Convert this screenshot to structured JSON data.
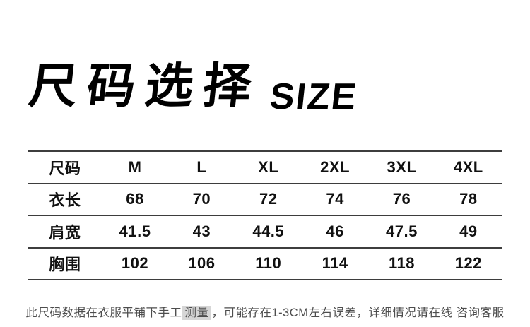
{
  "header": {
    "title_cn": "尺码选择",
    "title_en": "SIZE"
  },
  "chart_data": {
    "type": "table",
    "title": "尺码选择 SIZE",
    "columns": [
      "尺码",
      "M",
      "L",
      "XL",
      "2XL",
      "3XL",
      "4XL"
    ],
    "rows": [
      [
        "衣长",
        "68",
        "70",
        "72",
        "74",
        "76",
        "78"
      ],
      [
        "肩宽",
        "41.5",
        "43",
        "44.5",
        "46",
        "47.5",
        "49"
      ],
      [
        "胸围",
        "102",
        "106",
        "110",
        "114",
        "118",
        "122"
      ]
    ],
    "note": "此尺码数据在衣服平铺下手工测量，可能存在1-3CM左右误差，详细情况请在线 咨询客服",
    "layout": "first column holds row labels; 5 horizontal rules; no vertical rules; all cells bold and centered"
  },
  "footer": {
    "note_prefix": "此尺码数据在衣服平铺下手工",
    "note_highlight": "测量",
    "note_suffix": "，可能存在1-3CM左右误差，详细情况请在线 咨询客服"
  },
  "colors": {
    "background": "#ffffff",
    "title": "#000000",
    "table_text": "#111111",
    "table_line": "#3d3d3d",
    "note_text": "#4d4d4d",
    "note_highlight_bg": "#d6d6d6"
  }
}
